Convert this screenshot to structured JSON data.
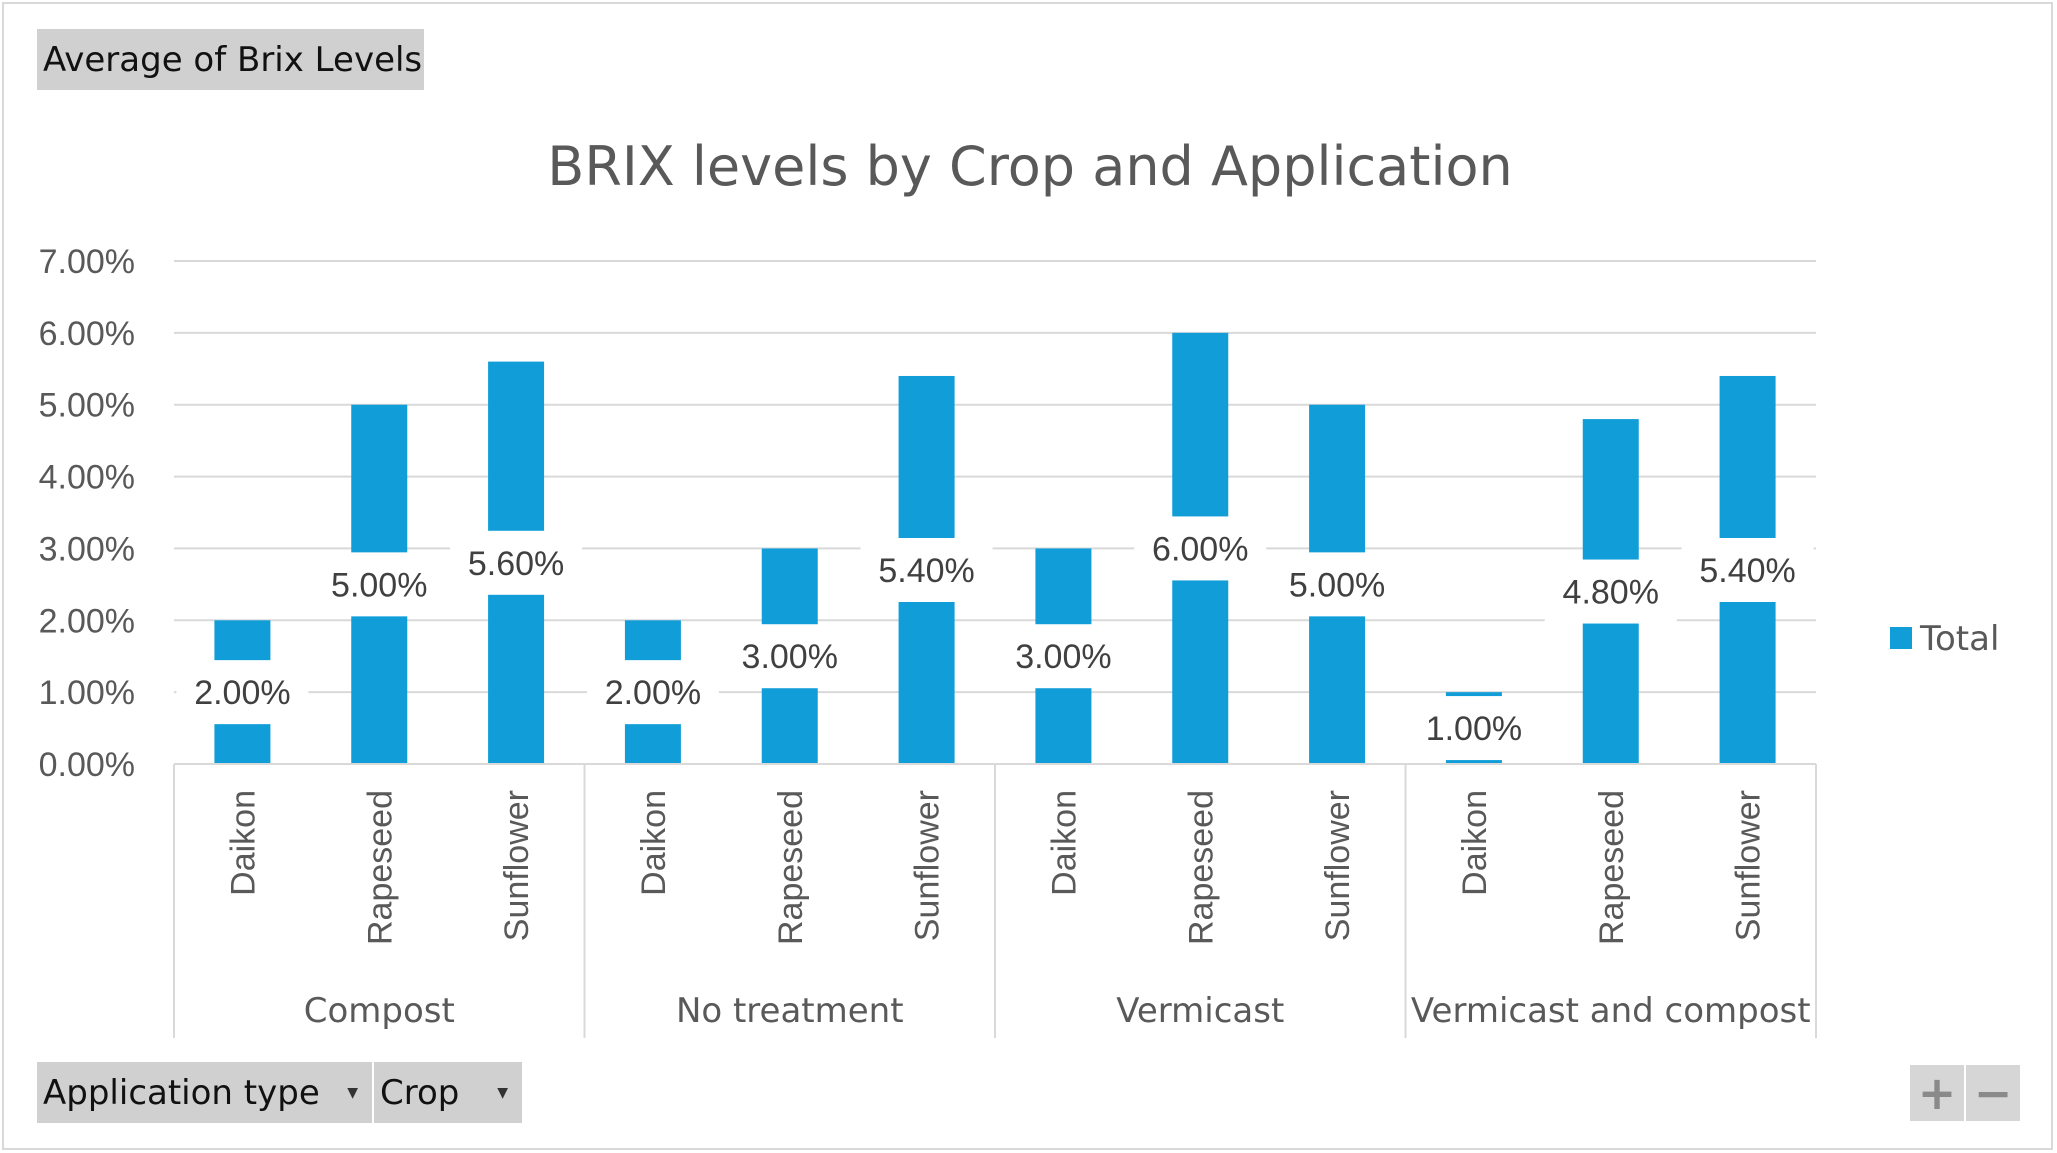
{
  "pivot": {
    "value_field": "Average  of Brix  Levels",
    "filters": [
      {
        "label": "Application  type",
        "icon": "dropdown-arrow-icon"
      },
      {
        "label": "Crop",
        "icon": "dropdown-arrow-icon"
      }
    ],
    "zoom_in": "+",
    "zoom_out": "−"
  },
  "colors": {
    "bar": "#119ED8",
    "grid": "#d9d9d9",
    "axis": "#d9d9d9"
  },
  "chart_data": {
    "type": "bar",
    "title": "BRIX levels by Crop and Application",
    "xlabel": "",
    "ylabel": "",
    "ylim": [
      0,
      0.07
    ],
    "y_ticks": [
      "0.00%",
      "1.00%",
      "2.00%",
      "3.00%",
      "4.00%",
      "5.00%",
      "6.00%",
      "7.00%"
    ],
    "legend": {
      "position": "right",
      "entries": [
        "Total"
      ]
    },
    "groups": [
      {
        "name": "Compost",
        "categories": [
          "Daikon",
          "Rapeseed",
          "Sunflower"
        ],
        "values": [
          0.02,
          0.05,
          0.056
        ],
        "labels": [
          "2.00%",
          "5.00%",
          "5.60%"
        ]
      },
      {
        "name": "No treatment",
        "categories": [
          "Daikon",
          "Rapeseed",
          "Sunflower"
        ],
        "values": [
          0.02,
          0.03,
          0.054
        ],
        "labels": [
          "2.00%",
          "3.00%",
          "5.40%"
        ]
      },
      {
        "name": "Vermicast",
        "categories": [
          "Daikon",
          "Rapeseed",
          "Sunflower"
        ],
        "values": [
          0.03,
          0.06,
          0.05
        ],
        "labels": [
          "3.00%",
          "6.00%",
          "5.00%"
        ]
      },
      {
        "name": "Vermicast and compost",
        "categories": [
          "Daikon",
          "Rapeseed",
          "Sunflower"
        ],
        "values": [
          0.01,
          0.048,
          0.054
        ],
        "labels": [
          "1.00%",
          "4.80%",
          "5.40%"
        ]
      }
    ],
    "series": [
      {
        "name": "Total"
      }
    ]
  }
}
